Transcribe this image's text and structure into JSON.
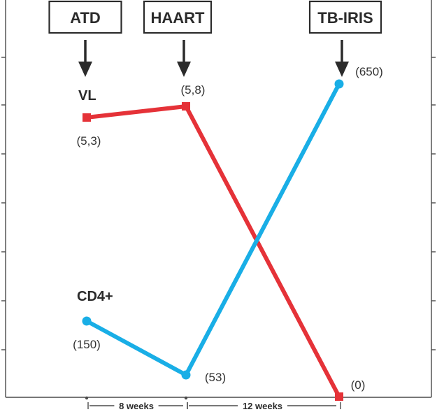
{
  "chart_data": {
    "type": "line",
    "events": [
      {
        "label": "ATD",
        "week": 0
      },
      {
        "label": "HAART",
        "week": 8
      },
      {
        "label": "TB-IRIS",
        "week": 20
      }
    ],
    "durations": [
      {
        "label": "8 weeks",
        "from": 0,
        "to": 8
      },
      {
        "label": "12 weeks",
        "from": 8,
        "to": 20
      }
    ],
    "series": [
      {
        "name": "VL",
        "color": "#e53238",
        "marker": "square",
        "points": [
          {
            "week": 0,
            "label": "(5,3)"
          },
          {
            "week": 8,
            "label": "(5,8)"
          },
          {
            "week": 20,
            "label": "(0)"
          }
        ]
      },
      {
        "name": "CD4+",
        "color": "#19aee6",
        "marker": "circle",
        "points": [
          {
            "week": 0,
            "label": "(150)"
          },
          {
            "week": 8,
            "label": "(53)"
          },
          {
            "week": 20,
            "label": "(650)"
          }
        ]
      }
    ]
  }
}
